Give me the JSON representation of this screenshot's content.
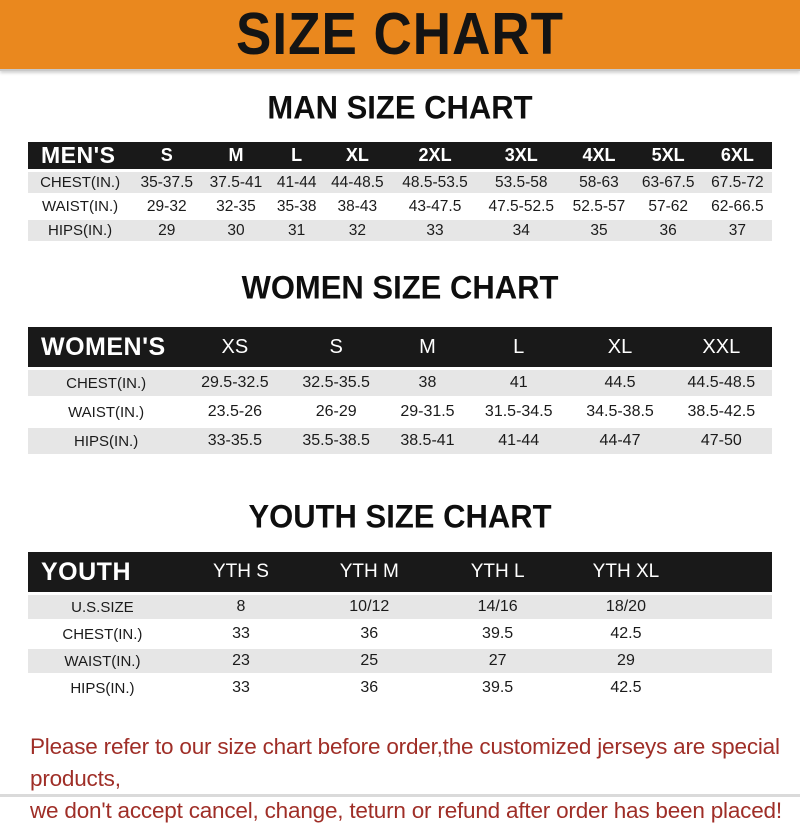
{
  "banner": {
    "title": "SIZE CHART"
  },
  "chart_data": [
    {
      "type": "table",
      "title": "MAN SIZE CHART",
      "corner_label": "MEN'S",
      "columns": [
        "S",
        "M",
        "L",
        "XL",
        "2XL",
        "3XL",
        "4XL",
        "5XL",
        "6XL"
      ],
      "rows": [
        {
          "label": "CHEST(IN.)",
          "values": [
            "35-37.5",
            "37.5-41",
            "41-44",
            "44-48.5",
            "48.5-53.5",
            "53.5-58",
            "58-63",
            "63-67.5",
            "67.5-72"
          ]
        },
        {
          "label": "WAIST(IN.)",
          "values": [
            "29-32",
            "32-35",
            "35-38",
            "38-43",
            "43-47.5",
            "47.5-52.5",
            "52.5-57",
            "57-62",
            "62-66.5"
          ]
        },
        {
          "label": "HIPS(IN.)",
          "values": [
            "29",
            "30",
            "31",
            "32",
            "33",
            "34",
            "35",
            "36",
            "37"
          ]
        }
      ]
    },
    {
      "type": "table",
      "title": "WOMEN SIZE CHART",
      "corner_label": "WOMEN'S",
      "columns": [
        "XS",
        "S",
        "M",
        "L",
        "XL",
        "XXL"
      ],
      "rows": [
        {
          "label": "CHEST(IN.)",
          "values": [
            "29.5-32.5",
            "32.5-35.5",
            "38",
            "41",
            "44.5",
            "44.5-48.5"
          ]
        },
        {
          "label": "WAIST(IN.)",
          "values": [
            "23.5-26",
            "26-29",
            "29-31.5",
            "31.5-34.5",
            "34.5-38.5",
            "38.5-42.5"
          ]
        },
        {
          "label": "HIPS(IN.)",
          "values": [
            "33-35.5",
            "35.5-38.5",
            "38.5-41",
            "41-44",
            "44-47",
            "47-50"
          ]
        }
      ]
    },
    {
      "type": "table",
      "title": "YOUTH SIZE CHART",
      "corner_label": "YOUTH",
      "columns": [
        "YTH S",
        "YTH M",
        "YTH L",
        "YTH XL"
      ],
      "rows": [
        {
          "label": "U.S.SIZE",
          "values": [
            "8",
            "10/12",
            "14/16",
            "18/20"
          ]
        },
        {
          "label": "CHEST(IN.)",
          "values": [
            "33",
            "36",
            "39.5",
            "42.5"
          ]
        },
        {
          "label": "WAIST(IN.)",
          "values": [
            "23",
            "25",
            "27",
            "29"
          ]
        },
        {
          "label": "HIPS(IN.)",
          "values": [
            "33",
            "36",
            "39.5",
            "42.5"
          ]
        }
      ]
    }
  ],
  "footer": {
    "line1": "Please refer to our size chart before order,the customized jerseys are special products,",
    "line2": "we don't accept cancel, change, teturn or refund after order has been placed!"
  },
  "colors": {
    "banner_bg": "#EA881E",
    "header_bg": "#191919",
    "row_stripe": "#E6E6E6",
    "footer_text": "#9F2E27"
  }
}
